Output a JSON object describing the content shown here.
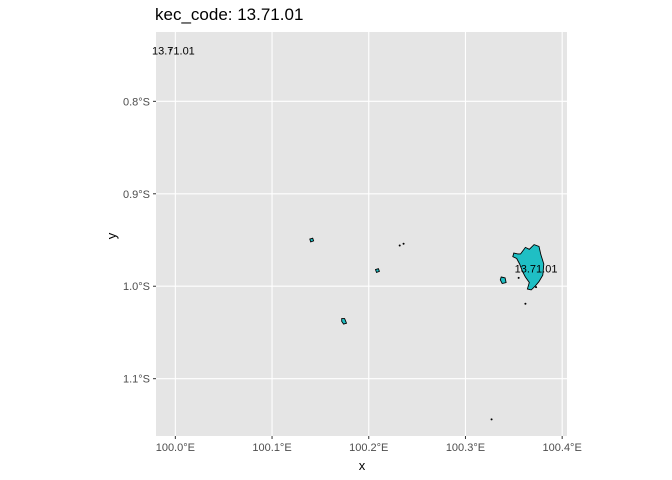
{
  "title": "kec_code: 13.71.01",
  "axes": {
    "x_title": "x",
    "y_title": "y",
    "x_ticks": [
      "100.0°E",
      "100.1°E",
      "100.2°E",
      "100.3°E",
      "100.4°E"
    ],
    "y_ticks": [
      "0.8°S",
      "0.9°S",
      "1.0°S",
      "1.1°S"
    ]
  },
  "colors": {
    "panel": "#e5e5e5",
    "grid": "#ffffff",
    "fill": "#1fbfc4",
    "outline": "#000000"
  },
  "labels": [
    {
      "text": "13.71.01",
      "lon": 100.373,
      "lat": -0.981
    },
    {
      "text": "13.71.01",
      "lon": 99.998,
      "lat": -0.745
    }
  ],
  "chart_data": {
    "type": "map",
    "x_range": [
      99.98,
      100.405
    ],
    "y_range": [
      -1.162,
      -0.725
    ],
    "x_tick_values": [
      100.0,
      100.1,
      100.2,
      100.3,
      100.4
    ],
    "y_tick_values": [
      -0.8,
      -0.9,
      -1.0,
      -1.1
    ],
    "grid": true,
    "features": [
      {
        "name": "main-island",
        "filled": true,
        "coords": [
          [
            100.357,
            -0.965
          ],
          [
            100.362,
            -0.958
          ],
          [
            100.366,
            -0.96
          ],
          [
            100.371,
            -0.955
          ],
          [
            100.376,
            -0.957
          ],
          [
            100.378,
            -0.966
          ],
          [
            100.381,
            -0.976
          ],
          [
            100.38,
            -0.988
          ],
          [
            100.376,
            -0.995
          ],
          [
            100.372,
            -1.0
          ],
          [
            100.368,
            -1.004
          ],
          [
            100.364,
            -1.003
          ],
          [
            100.366,
            -0.996
          ],
          [
            100.362,
            -0.99
          ],
          [
            100.359,
            -0.984
          ],
          [
            100.356,
            -0.976
          ],
          [
            100.353,
            -0.97
          ],
          [
            100.349,
            -0.968
          ],
          [
            100.35,
            -0.964
          ],
          [
            100.354,
            -0.965
          ]
        ]
      },
      {
        "name": "islet-west-of-main",
        "filled": true,
        "coords": [
          [
            100.337,
            -0.99
          ],
          [
            100.341,
            -0.991
          ],
          [
            100.342,
            -0.996
          ],
          [
            100.338,
            -0.997
          ],
          [
            100.336,
            -0.993
          ]
        ]
      },
      {
        "name": "islet-near-100.14",
        "filled": true,
        "coords": [
          [
            100.139,
            -0.949
          ],
          [
            100.142,
            -0.948
          ],
          [
            100.143,
            -0.951
          ],
          [
            100.14,
            -0.952
          ]
        ]
      },
      {
        "name": "islet-near-100.21",
        "filled": true,
        "coords": [
          [
            100.207,
            -0.982
          ],
          [
            100.21,
            -0.981
          ],
          [
            100.211,
            -0.984
          ],
          [
            100.208,
            -0.985
          ]
        ]
      },
      {
        "name": "islet-near-100.17",
        "filled": true,
        "coords": [
          [
            100.172,
            -1.035
          ],
          [
            100.175,
            -1.035
          ],
          [
            100.177,
            -1.04
          ],
          [
            100.174,
            -1.041
          ],
          [
            100.172,
            -1.038
          ]
        ]
      }
    ],
    "dots": [
      {
        "lon": 100.232,
        "lat": -0.956
      },
      {
        "lon": 100.236,
        "lat": -0.954
      },
      {
        "lon": 100.362,
        "lat": -1.019
      },
      {
        "lon": 100.327,
        "lat": -1.144
      },
      {
        "lon": 100.373,
        "lat": -1.001
      },
      {
        "lon": 99.995,
        "lat": -0.744
      },
      {
        "lon": 100.355,
        "lat": -0.991
      }
    ]
  }
}
